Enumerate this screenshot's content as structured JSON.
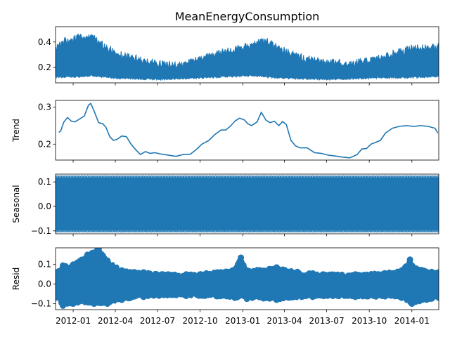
{
  "figure": {
    "title": "MeanEnergyConsumption",
    "x_tick_labels": [
      "2012-01",
      "2012-04",
      "2012-07",
      "2012-10",
      "2013-01",
      "2013-04",
      "2013-07",
      "2013-10",
      "2014-01"
    ]
  },
  "colors": {
    "series": "#1f77b4",
    "axes": "#000000",
    "background": "#ffffff"
  },
  "chart_data": [
    {
      "type": "area",
      "name": "observed",
      "title": "MeanEnergyConsumption",
      "ylabel": "",
      "ylim": [
        0.08,
        0.52
      ],
      "yticks": [
        0.2,
        0.4
      ],
      "ytick_labels": [
        "0.2",
        "0.4"
      ],
      "xlim": [
        "2011-11-24",
        "2014-02-28"
      ],
      "grid": false,
      "lower_envelope": {
        "dates": [
          "2011-11-24",
          "2012-01-01",
          "2012-02-10",
          "2012-04-01",
          "2012-07-01",
          "2012-09-15",
          "2013-01-20",
          "2013-04-01",
          "2013-07-01",
          "2013-10-01",
          "2014-02-28"
        ],
        "values": [
          0.12,
          0.12,
          0.13,
          0.11,
          0.1,
          0.11,
          0.13,
          0.11,
          0.1,
          0.11,
          0.12
        ]
      },
      "upper_envelope": {
        "dates": [
          "2011-11-24",
          "2011-12-15",
          "2012-01-05",
          "2012-02-10",
          "2012-04-01",
          "2012-05-15",
          "2012-07-01",
          "2012-08-15",
          "2012-10-01",
          "2012-12-01",
          "2013-01-15",
          "2013-02-20",
          "2013-04-01",
          "2013-05-15",
          "2013-07-01",
          "2013-08-15",
          "2013-10-01",
          "2013-11-15",
          "2014-01-01",
          "2014-02-28"
        ],
        "values": [
          0.38,
          0.44,
          0.46,
          0.47,
          0.34,
          0.3,
          0.26,
          0.25,
          0.3,
          0.36,
          0.4,
          0.44,
          0.36,
          0.3,
          0.27,
          0.26,
          0.28,
          0.33,
          0.38,
          0.39
        ]
      }
    },
    {
      "type": "line",
      "name": "trend",
      "ylabel": "Trend",
      "ylim": [
        0.157,
        0.318
      ],
      "yticks": [
        0.2,
        0.3
      ],
      "ytick_labels": [
        "0.2",
        "0.3"
      ],
      "xlim": [
        "2011-11-24",
        "2014-02-28"
      ],
      "grid": false,
      "dates": [
        "2011-12-01",
        "2011-12-05",
        "2011-12-12",
        "2011-12-20",
        "2011-12-28",
        "2012-01-05",
        "2012-01-15",
        "2012-01-25",
        "2012-02-03",
        "2012-02-08",
        "2012-02-15",
        "2012-02-25",
        "2012-03-05",
        "2012-03-12",
        "2012-03-20",
        "2012-03-28",
        "2012-04-05",
        "2012-04-15",
        "2012-04-25",
        "2012-05-05",
        "2012-05-15",
        "2012-05-25",
        "2012-06-05",
        "2012-06-15",
        "2012-06-25",
        "2012-07-10",
        "2012-07-25",
        "2012-08-10",
        "2012-08-25",
        "2012-09-10",
        "2012-09-25",
        "2012-10-05",
        "2012-10-20",
        "2012-11-01",
        "2012-11-15",
        "2012-11-25",
        "2012-12-05",
        "2012-12-15",
        "2012-12-25",
        "2013-01-05",
        "2013-01-12",
        "2013-01-20",
        "2013-02-01",
        "2013-02-10",
        "2013-02-20",
        "2013-03-01",
        "2013-03-10",
        "2013-03-20",
        "2013-03-28",
        "2013-04-05",
        "2013-04-15",
        "2013-04-25",
        "2013-05-05",
        "2013-05-20",
        "2013-06-05",
        "2013-06-20",
        "2013-07-05",
        "2013-07-20",
        "2013-08-05",
        "2013-08-20",
        "2013-09-05",
        "2013-09-15",
        "2013-09-25",
        "2013-10-05",
        "2013-10-15",
        "2013-10-25",
        "2013-11-05",
        "2013-11-20",
        "2013-12-05",
        "2013-12-20",
        "2014-01-05",
        "2014-01-20",
        "2014-02-05",
        "2014-02-20",
        "2014-02-26"
      ],
      "values": [
        0.232,
        0.235,
        0.26,
        0.272,
        0.262,
        0.26,
        0.268,
        0.276,
        0.305,
        0.31,
        0.29,
        0.258,
        0.255,
        0.245,
        0.22,
        0.21,
        0.213,
        0.222,
        0.22,
        0.2,
        0.185,
        0.172,
        0.18,
        0.175,
        0.177,
        0.173,
        0.17,
        0.167,
        0.172,
        0.173,
        0.188,
        0.2,
        0.21,
        0.225,
        0.238,
        0.238,
        0.248,
        0.262,
        0.27,
        0.265,
        0.255,
        0.25,
        0.26,
        0.286,
        0.265,
        0.258,
        0.262,
        0.25,
        0.261,
        0.253,
        0.21,
        0.195,
        0.19,
        0.19,
        0.177,
        0.175,
        0.17,
        0.168,
        0.165,
        0.163,
        0.172,
        0.187,
        0.188,
        0.2,
        0.205,
        0.21,
        0.23,
        0.243,
        0.248,
        0.25,
        0.248,
        0.25,
        0.248,
        0.243,
        0.23
      ]
    },
    {
      "type": "area",
      "name": "seasonal",
      "ylabel": "Seasonal",
      "ylim": [
        -0.112,
        0.132
      ],
      "yticks": [
        -0.1,
        0.0,
        0.1
      ],
      "ytick_labels": [
        "−0.1",
        "0.0",
        "0.1"
      ],
      "xlim": [
        "2011-11-24",
        "2014-02-28"
      ],
      "grid": false,
      "dates": [
        "2011-11-24",
        "2014-02-28"
      ],
      "max": 0.12,
      "min": -0.1
    },
    {
      "type": "scatter",
      "name": "resid",
      "ylabel": "Resid",
      "ylim": [
        -0.13,
        0.185
      ],
      "yticks": [
        -0.1,
        0.0,
        0.1
      ],
      "ytick_labels": [
        "−0.1",
        "0.0",
        "0.1"
      ],
      "xlim": [
        "2011-11-24",
        "2014-02-28"
      ],
      "grid": false,
      "lower_envelope": {
        "dates": [
          "2011-11-24",
          "2011-12-10",
          "2012-01-01",
          "2012-02-15",
          "2012-03-15",
          "2012-04-15",
          "2012-06-01",
          "2012-09-01",
          "2012-12-15",
          "2013-01-10",
          "2013-03-15",
          "2013-06-01",
          "2013-09-01",
          "2013-12-10",
          "2014-01-01",
          "2014-02-28"
        ],
        "values": [
          -0.07,
          -0.11,
          -0.1,
          -0.1,
          -0.1,
          -0.08,
          -0.065,
          -0.06,
          -0.07,
          -0.075,
          -0.08,
          -0.065,
          -0.065,
          -0.07,
          -0.1,
          -0.07
        ]
      },
      "upper_envelope": {
        "dates": [
          "2011-11-24",
          "2011-12-10",
          "2012-01-01",
          "2012-02-01",
          "2012-02-25",
          "2012-03-15",
          "2012-04-15",
          "2012-06-01",
          "2012-09-01",
          "2012-12-10",
          "2012-12-28",
          "2013-01-10",
          "2013-03-15",
          "2013-06-01",
          "2013-09-01",
          "2013-12-10",
          "2013-12-28",
          "2014-01-10",
          "2014-02-28"
        ],
        "values": [
          0.06,
          0.095,
          0.1,
          0.15,
          0.18,
          0.12,
          0.07,
          0.06,
          0.05,
          0.07,
          0.135,
          0.07,
          0.085,
          0.055,
          0.05,
          0.07,
          0.125,
          0.08,
          0.06
        ]
      }
    }
  ]
}
